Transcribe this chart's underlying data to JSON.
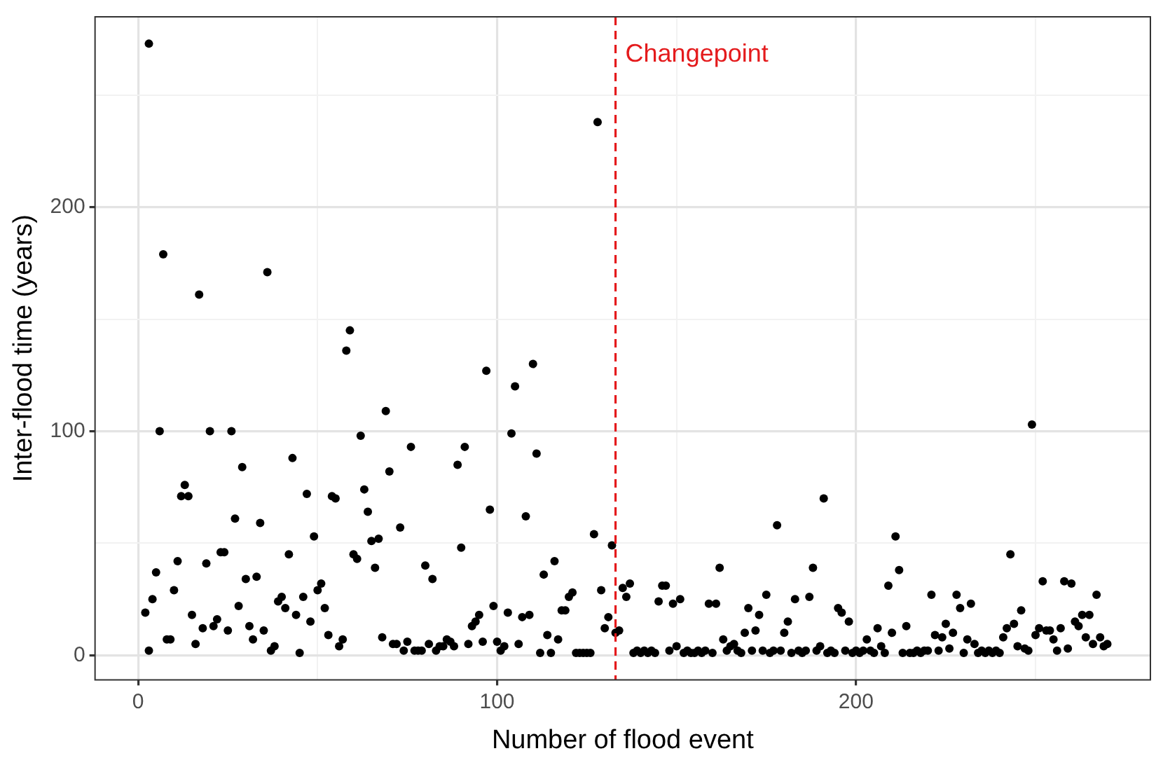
{
  "chart_data": {
    "type": "scatter",
    "xlabel": "Number of flood event",
    "ylabel": "Inter-flood time (years)",
    "x": [
      2,
      3,
      3,
      4,
      5,
      6,
      7,
      8,
      9,
      10,
      11,
      12,
      13,
      14,
      15,
      16,
      17,
      18,
      19,
      20,
      21,
      22,
      23,
      24,
      25,
      26,
      27,
      28,
      29,
      30,
      31,
      32,
      33,
      34,
      35,
      36,
      37,
      38,
      39,
      40,
      41,
      42,
      43,
      44,
      45,
      46,
      47,
      48,
      49,
      50,
      51,
      52,
      53,
      54,
      55,
      56,
      57,
      58,
      59,
      60,
      61,
      62,
      63,
      64,
      65,
      66,
      67,
      68,
      69,
      70,
      71,
      72,
      73,
      74,
      75,
      76,
      77,
      78,
      79,
      80,
      81,
      82,
      83,
      84,
      85,
      86,
      87,
      88,
      89,
      90,
      91,
      92,
      93,
      94,
      95,
      96,
      97,
      98,
      99,
      100,
      101,
      102,
      103,
      104,
      105,
      106,
      107,
      108,
      109,
      110,
      111,
      112,
      113,
      114,
      115,
      116,
      117,
      118,
      119,
      120,
      121,
      122,
      123,
      124,
      125,
      126,
      127,
      128,
      129,
      130,
      131,
      132,
      133,
      134,
      135,
      136,
      137,
      138,
      139,
      140,
      141,
      142,
      143,
      144,
      145,
      146,
      147,
      148,
      149,
      150,
      151,
      152,
      153,
      154,
      155,
      156,
      157,
      158,
      159,
      160,
      161,
      162,
      163,
      164,
      165,
      166,
      167,
      168,
      169,
      170,
      171,
      172,
      173,
      174,
      175,
      176,
      177,
      178,
      179,
      180,
      181,
      182,
      183,
      184,
      185,
      186,
      187,
      188,
      189,
      190,
      191,
      192,
      193,
      194,
      195,
      196,
      197,
      198,
      199,
      200,
      201,
      202,
      203,
      204,
      205,
      206,
      207,
      208,
      209,
      210,
      211,
      212,
      213,
      214,
      215,
      216,
      217,
      218,
      219,
      220,
      221,
      222,
      223,
      224,
      225,
      226,
      227,
      228,
      229,
      230,
      231,
      232,
      233,
      234,
      235,
      236,
      237,
      238,
      239,
      240,
      241,
      242,
      243,
      244,
      245,
      246,
      247,
      248,
      249,
      250,
      251,
      252,
      253,
      254,
      255,
      256,
      257,
      258,
      259,
      260,
      261,
      262,
      263,
      264,
      265,
      266,
      267,
      268,
      269,
      270
    ],
    "values": [
      19,
      2,
      273,
      25,
      37,
      100,
      179,
      7,
      7,
      29,
      42,
      71,
      76,
      71,
      18,
      5,
      161,
      12,
      41,
      100,
      13,
      16,
      46,
      46,
      11,
      100,
      61,
      22,
      84,
      34,
      13,
      7,
      35,
      59,
      11,
      171,
      2,
      4,
      24,
      26,
      21,
      45,
      88,
      18,
      1,
      26,
      72,
      15,
      53,
      29,
      32,
      21,
      9,
      71,
      70,
      4,
      7,
      136,
      145,
      45,
      43,
      98,
      74,
      64,
      51,
      39,
      52,
      8,
      109,
      82,
      5,
      5,
      57,
      2,
      6,
      93,
      2,
      2,
      2,
      40,
      5,
      34,
      2,
      4,
      4,
      7,
      6,
      4,
      85,
      48,
      93,
      5,
      13,
      15,
      18,
      6,
      127,
      65,
      22,
      6,
      2,
      4,
      19,
      99,
      120,
      5,
      17,
      62,
      18,
      130,
      90,
      1,
      36,
      9,
      1,
      42,
      7,
      20,
      20,
      26,
      28,
      1,
      1,
      1,
      1,
      1,
      54,
      238,
      29,
      12,
      17,
      49,
      10,
      11,
      30,
      26,
      32,
      1,
      2,
      1,
      2,
      1,
      2,
      1,
      24,
      31,
      31,
      2,
      23,
      4,
      25,
      1,
      2,
      1,
      1,
      2,
      1,
      2,
      23,
      1,
      23,
      39,
      7,
      2,
      4,
      5,
      2,
      1,
      10,
      21,
      2,
      11,
      18,
      2,
      27,
      1,
      2,
      58,
      2,
      10,
      15,
      1,
      25,
      2,
      1,
      2,
      26,
      39,
      2,
      4,
      70,
      1,
      2,
      1,
      21,
      19,
      2,
      15,
      1,
      2,
      1,
      2,
      7,
      2,
      1,
      12,
      4,
      1,
      31,
      10,
      53,
      38,
      1,
      13,
      1,
      1,
      2,
      1,
      2,
      2,
      27,
      9,
      2,
      8,
      14,
      3,
      10,
      27,
      21,
      1,
      7,
      23,
      5,
      1,
      2,
      1,
      2,
      1,
      2,
      1,
      8,
      12,
      45,
      14,
      4,
      20,
      3,
      2,
      103,
      9,
      12,
      33,
      11,
      11,
      7,
      2,
      12,
      33,
      3,
      32,
      15,
      13,
      18,
      8,
      18,
      5,
      27,
      8,
      4,
      5
    ],
    "color": "#000000",
    "marker": "circle",
    "xlim": [
      -12,
      282
    ],
    "ylim": [
      -11,
      285
    ],
    "xticks": [
      0,
      {
        "value": 50,
        "label": null
      },
      100,
      {
        "value": 150,
        "label": null
      },
      200,
      {
        "value": 250,
        "label": null
      }
    ],
    "yticks": [
      0,
      {
        "value": 50,
        "label": null
      },
      100,
      {
        "value": 150,
        "label": null
      },
      200,
      {
        "value": 250,
        "label": null
      }
    ],
    "grid": true,
    "legend": false,
    "ref_lines": [
      {
        "axis": "x",
        "value": 133,
        "label": "Changepoint",
        "color": "#e41a1c",
        "line_style": "dashed"
      }
    ]
  }
}
